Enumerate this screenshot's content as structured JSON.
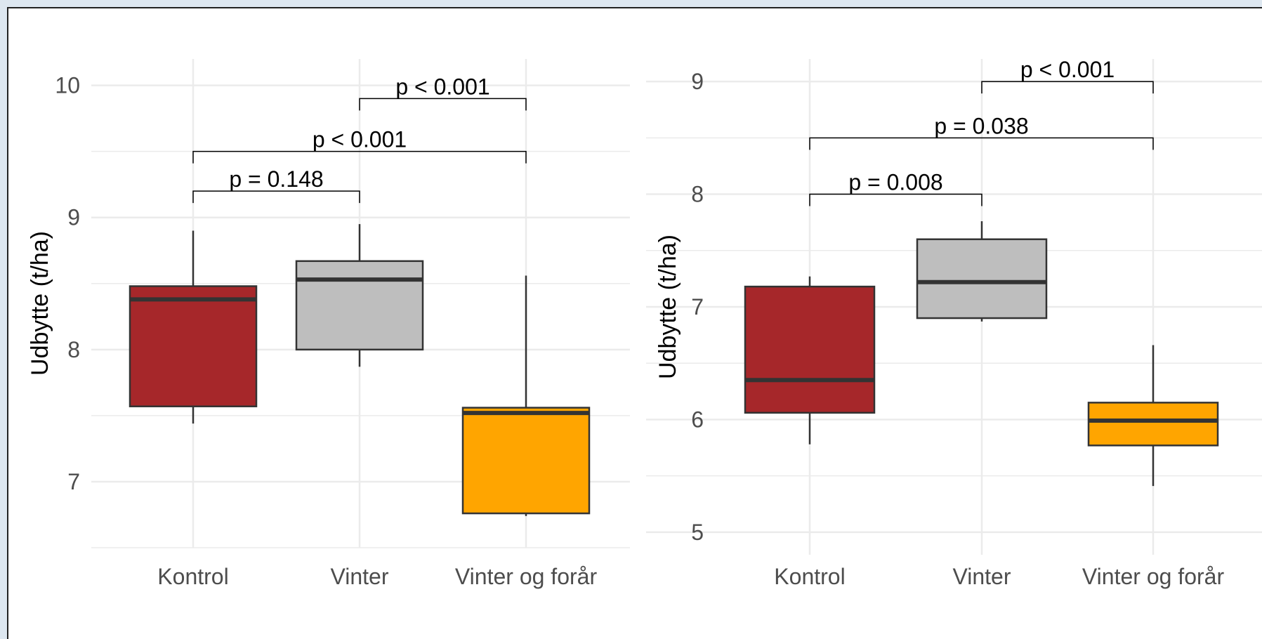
{
  "colors": {
    "kontrol": "#a6272a",
    "vinter": "#bebebe",
    "vinter_og_forar": "#ffa500",
    "box_outline": "#333333",
    "grid": "#ebebeb"
  },
  "chart_data": [
    {
      "type": "box",
      "ylabel": "Udbytte (t/ha)",
      "ylim": [
        6.5,
        10.2
      ],
      "yticks": [
        "7",
        "8",
        "9",
        "10"
      ],
      "grid": true,
      "categories": [
        "Kontrol",
        "Vinter",
        "Vinter og forår"
      ],
      "boxes": [
        {
          "category": "Kontrol",
          "min": 7.44,
          "q1": 7.57,
          "median": 8.38,
          "q3": 8.48,
          "max": 8.9
        },
        {
          "category": "Vinter",
          "min": 7.87,
          "q1": 8.0,
          "median": 8.53,
          "q3": 8.67,
          "max": 8.95
        },
        {
          "category": "Vinter og forår",
          "min": 6.74,
          "q1": 6.76,
          "median": 7.52,
          "q3": 7.56,
          "max": 8.56
        }
      ],
      "comparisons": [
        {
          "from": "Kontrol",
          "to": "Vinter",
          "label": "p = 0.148",
          "y": 9.2
        },
        {
          "from": "Kontrol",
          "to": "Vinter og forår",
          "label": "p < 0.001",
          "y": 9.5
        },
        {
          "from": "Vinter",
          "to": "Vinter og forår",
          "label": "p < 0.001",
          "y": 9.9
        }
      ]
    },
    {
      "type": "box",
      "ylabel": "Udbytte (t/ha)",
      "ylim": [
        4.8,
        9.2
      ],
      "yticks": [
        "5",
        "6",
        "7",
        "8",
        "9"
      ],
      "grid": true,
      "categories": [
        "Kontrol",
        "Vinter",
        "Vinter og forår"
      ],
      "boxes": [
        {
          "category": "Kontrol",
          "min": 5.78,
          "q1": 6.06,
          "median": 6.35,
          "q3": 7.18,
          "max": 7.27
        },
        {
          "category": "Vinter",
          "min": 6.87,
          "q1": 6.9,
          "median": 7.22,
          "q3": 7.6,
          "max": 7.76
        },
        {
          "category": "Vinter og forår",
          "min": 5.41,
          "q1": 5.77,
          "median": 5.99,
          "q3": 6.15,
          "max": 6.66
        }
      ],
      "comparisons": [
        {
          "from": "Kontrol",
          "to": "Vinter",
          "label": "p = 0.008",
          "y": 8.0
        },
        {
          "from": "Kontrol",
          "to": "Vinter og forår",
          "label": "p = 0.038",
          "y": 8.5
        },
        {
          "from": "Vinter",
          "to": "Vinter og forår",
          "label": "p < 0.001",
          "y": 9.0
        }
      ]
    }
  ]
}
